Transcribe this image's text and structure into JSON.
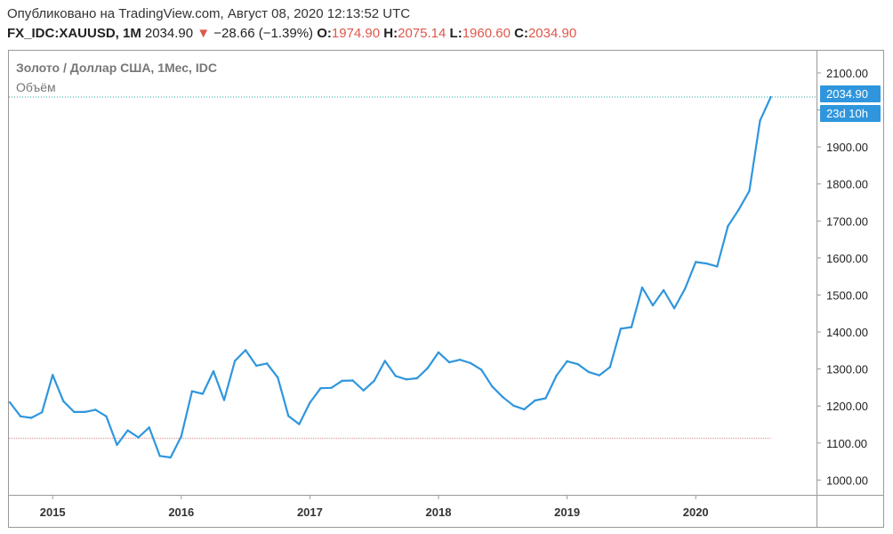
{
  "header": {
    "published": "Опубликовано на TradingView.com, Август 08, 2020 12:13:52 UTC",
    "symbol": "FX_IDC:XAUUSD, 1M",
    "last": "2034.90",
    "change_arrow": "▼",
    "change": "−28.66 (−1.39%)",
    "open_label": "O:",
    "open": "1974.90",
    "high_label": "H:",
    "high": "2075.14",
    "low_label": "L:",
    "low": "1960.60",
    "close_label": "C:",
    "close": "2034.90"
  },
  "colors": {
    "line": "#2f96dd",
    "tag": "#2f96dd",
    "price_line": "#26a69a",
    "volume_line": "#e88b8b",
    "negative": "#e0574a",
    "border": "#999999"
  },
  "chart_data": {
    "type": "line",
    "title": "Золото / Доллар США, 1Мес, IDC",
    "volume_label": "Объём",
    "x_tick_labels": [
      "2015",
      "2016",
      "2017",
      "2018",
      "2019",
      "2020"
    ],
    "y_tick_labels": [
      "1000.00",
      "1100.00",
      "1200.00",
      "1300.00",
      "1400.00",
      "1500.00",
      "1600.00",
      "1700.00",
      "1800.00",
      "1900.00",
      "2000.00",
      "2100.00"
    ],
    "ylim": [
      960,
      2160
    ],
    "last_price_tag": "2034.90",
    "time_tag": "23d 10h",
    "x_start": "2014-09",
    "values": [
      1210,
      1172,
      1168,
      1183,
      1284,
      1213,
      1184,
      1184,
      1190,
      1172,
      1095,
      1134,
      1115,
      1142,
      1065,
      1061,
      1118,
      1240,
      1233,
      1294,
      1216,
      1322,
      1351,
      1309,
      1315,
      1277,
      1173,
      1151,
      1209,
      1248,
      1249,
      1268,
      1269,
      1242,
      1268,
      1322,
      1281,
      1272,
      1275,
      1303,
      1345,
      1318,
      1325,
      1316,
      1298,
      1253,
      1224,
      1201,
      1191,
      1215,
      1221,
      1282,
      1321,
      1313,
      1292,
      1283,
      1305,
      1409,
      1413,
      1520,
      1472,
      1513,
      1464,
      1517,
      1589,
      1585,
      1577,
      1686,
      1730,
      1781,
      1971,
      2034.9
    ]
  }
}
